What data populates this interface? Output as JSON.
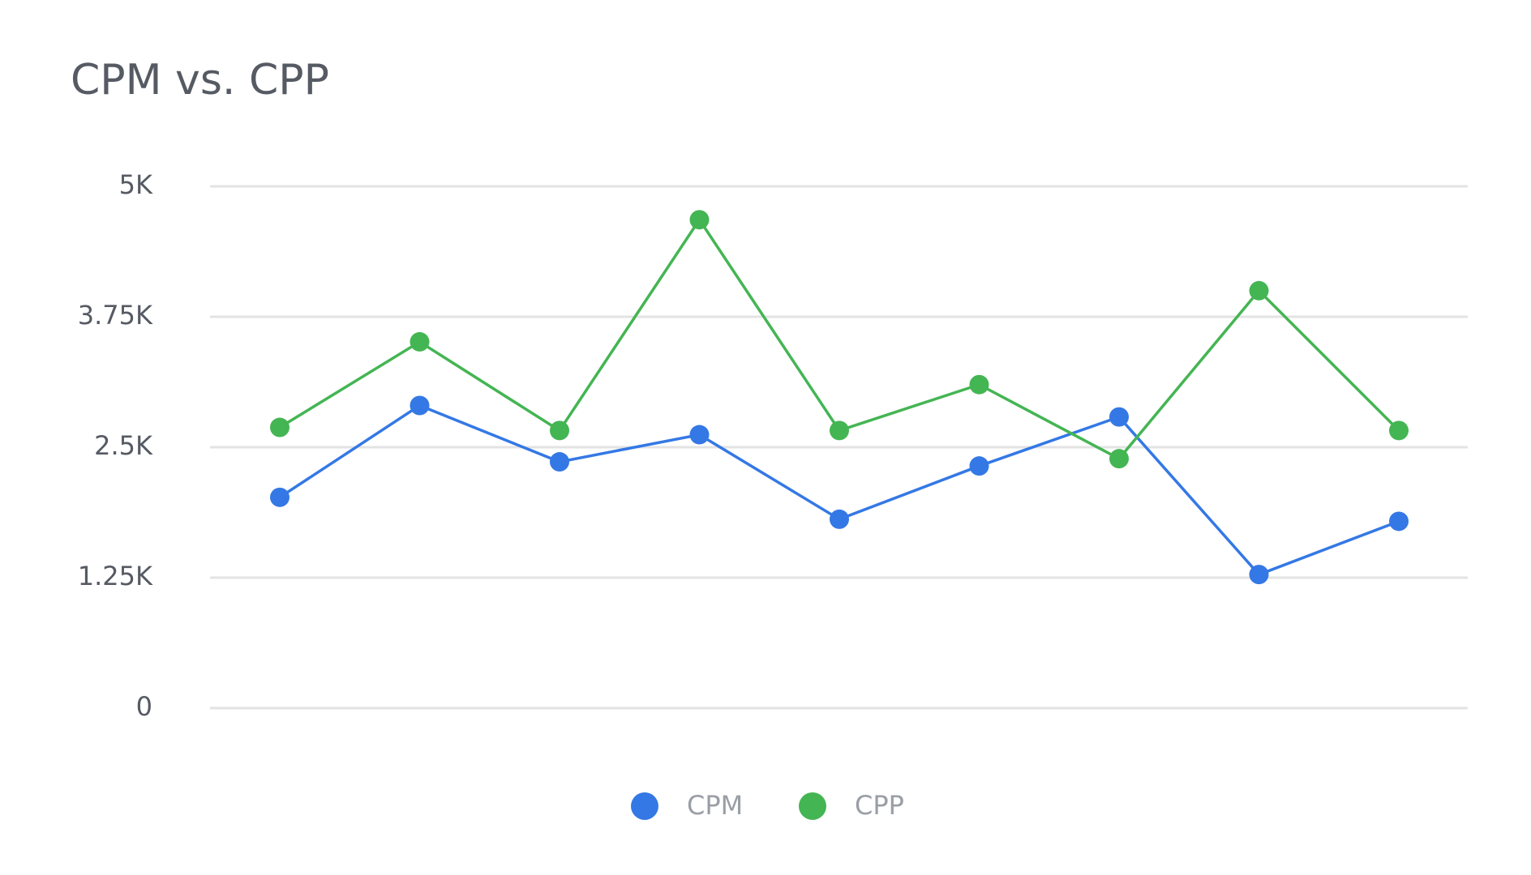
{
  "chart_data": {
    "type": "line",
    "title": "CPM vs. CPP",
    "categories": [
      null,
      null,
      null,
      null,
      null,
      null,
      null,
      null,
      null
    ],
    "series": [
      {
        "name": "CPM",
        "color": "#3478e5",
        "values": [
          2020,
          2900,
          2360,
          2620,
          1810,
          2320,
          2790,
          1280,
          1790
        ]
      },
      {
        "name": "CPP",
        "color": "#44b553",
        "values": [
          2690,
          3510,
          2660,
          4680,
          2660,
          3100,
          2390,
          4000,
          2660
        ]
      }
    ],
    "ylim": [
      0,
      5000
    ],
    "yticks": [
      0,
      {
        "value": 1250,
        "label": "1.25K"
      },
      {
        "value": 2500,
        "label": "2.5K"
      },
      {
        "value": 3750,
        "label": "3.75K"
      },
      {
        "value": 5000,
        "label": "5K"
      }
    ],
    "grid": true,
    "legend": "bottom"
  }
}
